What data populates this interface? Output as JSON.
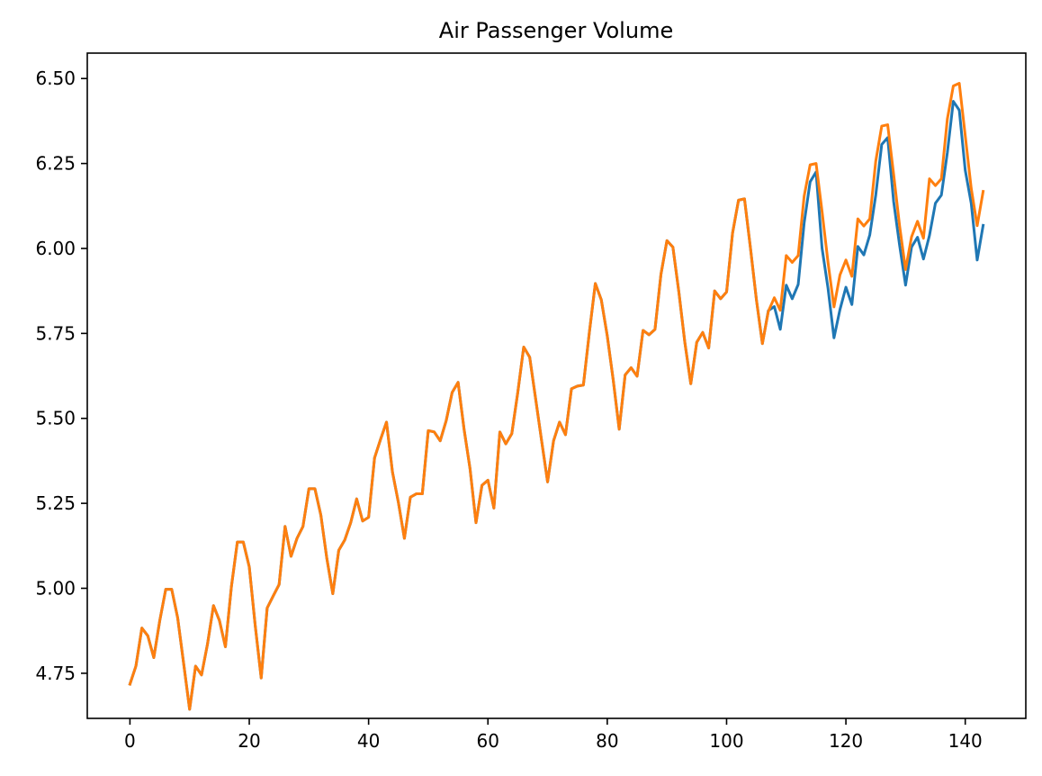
{
  "chart_data": {
    "type": "line",
    "title": "Air Passenger Volume",
    "xlabel": "",
    "ylabel": "",
    "xlim": [
      -7.15,
      150.15
    ],
    "ylim": [
      4.6172,
      6.5748
    ],
    "x_ticks": [
      0,
      20,
      40,
      60,
      80,
      100,
      120,
      140
    ],
    "x_tick_labels": [
      "0",
      "20",
      "40",
      "60",
      "80",
      "100",
      "120",
      "140"
    ],
    "y_ticks": [
      4.75,
      5.0,
      5.25,
      5.5,
      5.75,
      6.0,
      6.25,
      6.5
    ],
    "y_tick_labels": [
      "4.75",
      "5.00",
      "5.25",
      "5.50",
      "5.75",
      "6.00",
      "6.25",
      "6.50"
    ],
    "grid": false,
    "legend": "none",
    "series": [
      {
        "color": "#1f77b4",
        "x_start": 0,
        "values": [
          4.718,
          4.771,
          4.883,
          4.86,
          4.796,
          4.905,
          4.997,
          4.997,
          4.913,
          4.779,
          4.644,
          4.771,
          4.745,
          4.836,
          4.949,
          4.905,
          4.828,
          5.004,
          5.136,
          5.136,
          5.063,
          4.89,
          4.736,
          4.942,
          4.977,
          5.011,
          5.182,
          5.094,
          5.147,
          5.182,
          5.293,
          5.293,
          5.215,
          5.088,
          4.984,
          5.112,
          5.142,
          5.193,
          5.263,
          5.198,
          5.209,
          5.384,
          5.438,
          5.489,
          5.342,
          5.252,
          5.147,
          5.268,
          5.278,
          5.278,
          5.464,
          5.46,
          5.434,
          5.493,
          5.576,
          5.606,
          5.468,
          5.352,
          5.193,
          5.303,
          5.318,
          5.236,
          5.46,
          5.425,
          5.455,
          5.576,
          5.71,
          5.68,
          5.557,
          5.434,
          5.313,
          5.434,
          5.489,
          5.452,
          5.587,
          5.595,
          5.598,
          5.753,
          5.897,
          5.849,
          5.743,
          5.613,
          5.468,
          5.628,
          5.649,
          5.624,
          5.759,
          5.746,
          5.762,
          5.924,
          6.023,
          6.004,
          5.872,
          5.724,
          5.602,
          5.724,
          5.753,
          5.707,
          5.875,
          5.852,
          5.872,
          6.045,
          6.142,
          6.146,
          6.001,
          5.849,
          5.72,
          5.817,
          5.829,
          5.762,
          5.892,
          5.852,
          5.894,
          6.075,
          6.196,
          6.225,
          6.001,
          5.883,
          5.737,
          5.82,
          5.886,
          5.835,
          6.006,
          5.981,
          6.04,
          6.157,
          6.306,
          6.326,
          6.138,
          6.009,
          5.892,
          6.004,
          6.033,
          5.969,
          6.038,
          6.133,
          6.157,
          6.282,
          6.433,
          6.407,
          6.23,
          6.133,
          5.966,
          6.068
        ]
      },
      {
        "color": "#ff7f0e",
        "x_start": 0,
        "values": [
          4.718,
          4.771,
          4.883,
          4.86,
          4.796,
          4.905,
          4.997,
          4.997,
          4.913,
          4.779,
          4.644,
          4.771,
          4.745,
          4.836,
          4.949,
          4.905,
          4.828,
          5.004,
          5.136,
          5.136,
          5.063,
          4.89,
          4.736,
          4.942,
          4.977,
          5.011,
          5.182,
          5.094,
          5.147,
          5.182,
          5.293,
          5.293,
          5.215,
          5.088,
          4.984,
          5.112,
          5.142,
          5.193,
          5.263,
          5.198,
          5.209,
          5.384,
          5.438,
          5.489,
          5.342,
          5.252,
          5.147,
          5.268,
          5.278,
          5.278,
          5.464,
          5.46,
          5.434,
          5.493,
          5.576,
          5.606,
          5.468,
          5.352,
          5.193,
          5.303,
          5.318,
          5.236,
          5.46,
          5.425,
          5.455,
          5.576,
          5.71,
          5.68,
          5.557,
          5.434,
          5.313,
          5.434,
          5.489,
          5.452,
          5.587,
          5.595,
          5.598,
          5.753,
          5.897,
          5.849,
          5.743,
          5.613,
          5.468,
          5.628,
          5.649,
          5.624,
          5.759,
          5.746,
          5.762,
          5.924,
          6.023,
          6.004,
          5.872,
          5.724,
          5.602,
          5.724,
          5.753,
          5.707,
          5.875,
          5.852,
          5.872,
          6.045,
          6.142,
          6.146,
          6.001,
          5.849,
          5.72,
          5.815,
          5.855,
          5.818,
          5.979,
          5.959,
          5.979,
          6.154,
          6.246,
          6.25,
          6.109,
          5.959,
          5.828,
          5.922,
          5.966,
          5.918,
          6.087,
          6.066,
          6.087,
          6.257,
          6.36,
          6.364,
          6.218,
          6.066,
          5.938,
          6.034,
          6.08,
          6.03,
          6.205,
          6.185,
          6.205,
          6.381,
          6.478,
          6.486,
          6.332,
          6.177,
          6.067,
          6.168
        ]
      }
    ]
  }
}
